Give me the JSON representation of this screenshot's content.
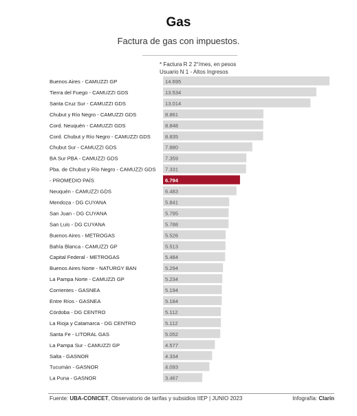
{
  "header": {
    "title": "Gas",
    "subtitle": "Factura de gas con impuestos.",
    "unit_line1": "* Factura R 2 2°/mes, en pesos",
    "unit_line2": "Usuario N 1 - Altos Ingresos"
  },
  "footer": {
    "source_prefix": "Fuente: ",
    "source_bold": "UBA-CONICET",
    "source_rest": ", Observatorio de tarifas y subsidios IIEP | JUNIO 2023",
    "credit_prefix": "Infografía: ",
    "credit_bold": "Clarín"
  },
  "colors": {
    "bar": "#d9d9d9",
    "highlight": "#a3142a",
    "highlight_text": "#ffffff",
    "value_text": "#555555"
  },
  "chart_data": {
    "type": "bar",
    "orientation": "horizontal",
    "title": "Gas",
    "subtitle": "Factura de gas con impuestos.",
    "xlim": [
      0,
      15000
    ],
    "grid": false,
    "legend": "none",
    "highlight_index": 9,
    "categories": [
      "Buenos Aires - CAMUZZI GP",
      "Tierra del Fuego - CAMUZZI GDS",
      "Santa Cruz Sur - CAMUZZI GDS",
      "Chubut y Río Negro - CAMUZZI GDS",
      "Cord. Neuquén - CAMUZZI GDS",
      "Cord. Chubut y Río Negro - CAMUZZI GDS",
      "Chubut Sur - CAMUZZI GDS",
      "BA Sur PBA - CAMUZZI GDS",
      "Pba. de Chubut y Río Negro - CAMUZZI GDS",
      "- PROMEDIO PAÍS",
      "Neuquén - CAMUZZI GDS",
      "Mendoza - DG CUYANA",
      "San Juan - DG CUYANA",
      "San Luis - DG CUYANA",
      "Buenos Aires - METROGAS",
      "Bahía Blanca - CAMUZZI GP",
      "Capital Federal - METROGAS",
      "Buenos Aires Norte - NATURGY BAN",
      "La Pampa Norte - CAMUZZI GP",
      "Corrientes - GASNEA",
      "Entre Ríos - GASNEA",
      "Córdoba - DG CENTRO",
      "La Rioja y Catamarca - DG CENTRO",
      "Santa Fe - LITORAL GAS",
      "La Pampa Sur - CAMUZZI GP",
      "Salta - GASNOR",
      "Tucumán - GASNOR",
      "La Puna - GASNOR"
    ],
    "values": [
      14695,
      13534,
      13014,
      8861,
      8848,
      8835,
      7880,
      7359,
      7331,
      6794,
      6483,
      5841,
      5795,
      5788,
      5526,
      5513,
      5484,
      5294,
      5234,
      5194,
      5184,
      5112,
      5112,
      5052,
      4577,
      4334,
      4093,
      3467
    ],
    "value_labels": [
      "14.695",
      "13.534",
      "13.014",
      "8.861",
      "8.848",
      "8.835",
      "7.880",
      "7.359",
      "7.331",
      "6.794",
      "6.483",
      "5.841",
      "5.795",
      "5.788",
      "5.526",
      "5.513",
      "5.484",
      "5.294",
      "5.234",
      "5.194",
      "5.184",
      "5.112",
      "5.112",
      "5.052",
      "4.577",
      "4.334",
      "4.093",
      "3.467"
    ]
  }
}
